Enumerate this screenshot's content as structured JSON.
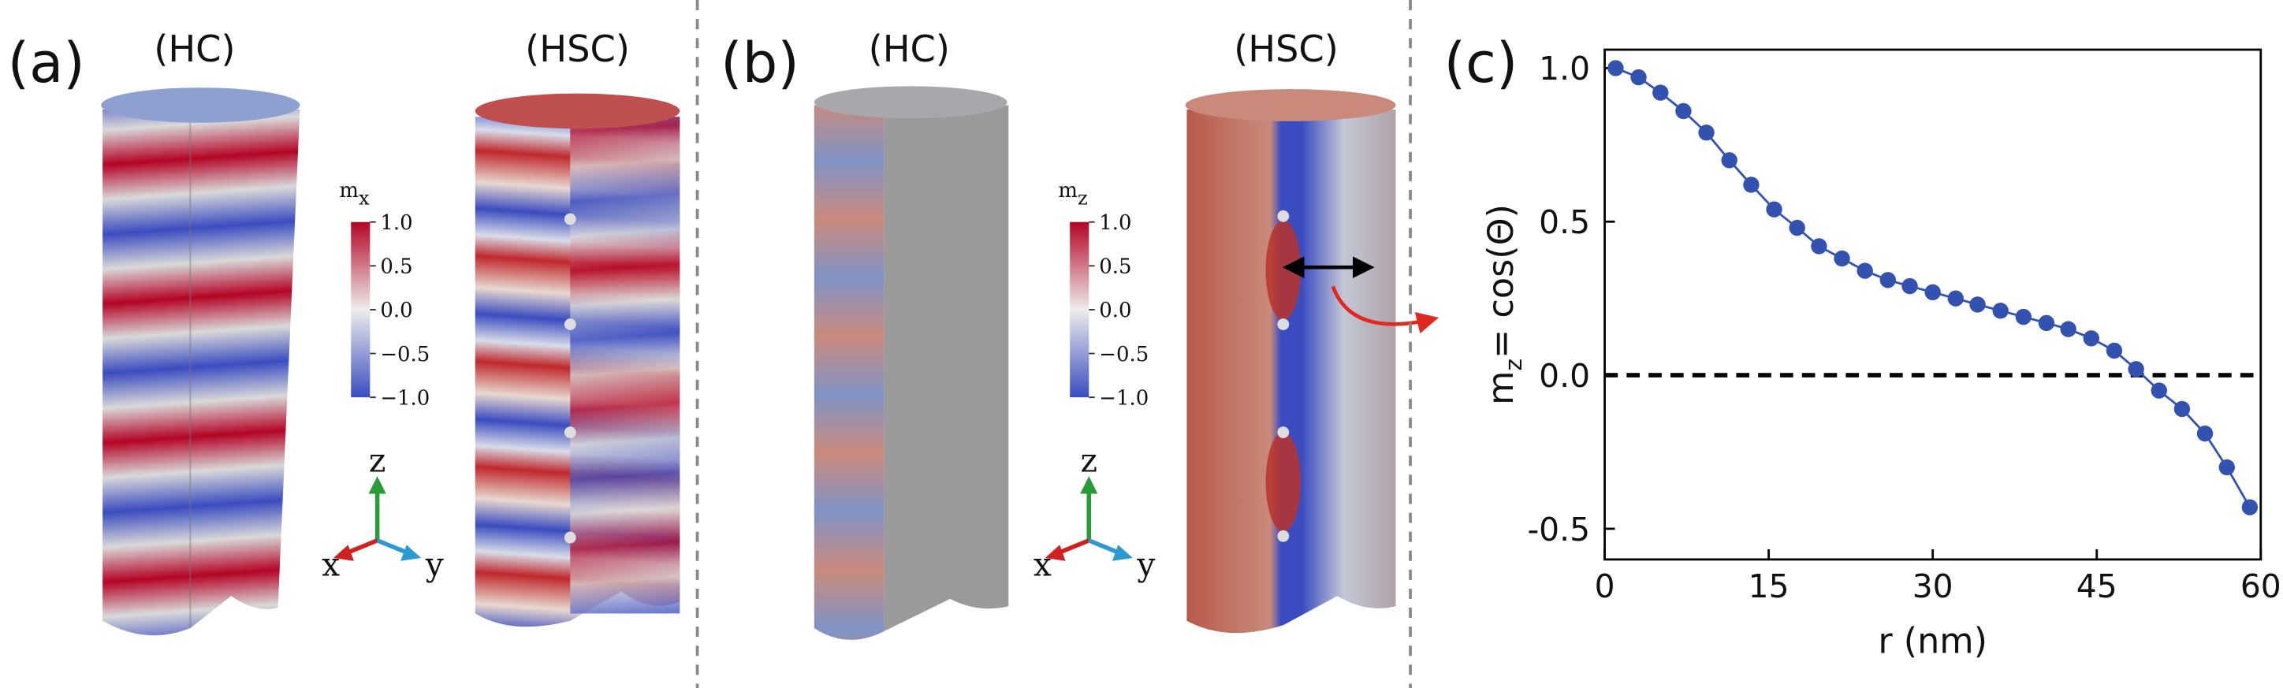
{
  "panels": {
    "a": {
      "label": "(a)",
      "left_title": "(HC)",
      "right_title": "(HSC)",
      "colorbar": {
        "label": [
          "m",
          "x"
        ],
        "ticks": [
          {
            "value": 1.0,
            "label": "1.0"
          },
          0.5,
          {
            "value": 0.0,
            "label": "0.0"
          },
          {
            "value": -0.5,
            "label": "−0.5"
          },
          {
            "value": -1.0,
            "label": "−1.0"
          }
        ]
      },
      "axes": {
        "z": "z",
        "x": "x",
        "y": "y"
      }
    },
    "b": {
      "label": "(b)",
      "left_title": "(HC)",
      "right_title": "(HSC)",
      "colorbar": {
        "label": [
          "m",
          "z"
        ],
        "ticks": [
          {
            "value": 1.0,
            "label": "1.0"
          },
          0.5,
          {
            "value": 0.0,
            "label": "0.0"
          },
          {
            "value": -0.5,
            "label": "−0.5"
          },
          {
            "value": -1.0,
            "label": "−1.0"
          }
        ]
      },
      "axes": {
        "z": "z",
        "x": "x",
        "y": "y"
      }
    },
    "c": {
      "label": "(c)"
    }
  },
  "chart_data": {
    "type": "line",
    "xlabel": "r (nm)",
    "ylabel": [
      "m",
      "z",
      "= cos(Θ)"
    ],
    "x": [
      1,
      3.1,
      5.1,
      7.2,
      9.3,
      11.4,
      13.4,
      15.5,
      17.6,
      19.6,
      21.7,
      23.8,
      25.9,
      27.9,
      30,
      32.1,
      34.1,
      36.2,
      38.3,
      40.4,
      42.4,
      44.5,
      46.6,
      48.6,
      50.7,
      52.8,
      54.9,
      56.9,
      59
    ],
    "values": [
      1.0,
      0.97,
      0.92,
      0.86,
      0.79,
      0.7,
      0.62,
      0.54,
      0.48,
      0.42,
      0.38,
      0.34,
      0.31,
      0.29,
      0.27,
      0.25,
      0.23,
      0.21,
      0.19,
      0.17,
      0.15,
      0.12,
      0.08,
      0.02,
      -0.05,
      -0.11,
      -0.19,
      -0.3,
      -0.43
    ],
    "color": "#3352b0",
    "reference_line": 0,
    "xlim": [
      0,
      60
    ],
    "xticks": [
      0,
      15,
      30,
      45,
      60
    ],
    "ylim": [
      -0.6,
      1.06
    ],
    "yticks": [
      {
        "value": 1.0,
        "label": "1.0"
      },
      0.5,
      {
        "value": 0.0,
        "label": "0.0"
      },
      -0.5
    ]
  }
}
